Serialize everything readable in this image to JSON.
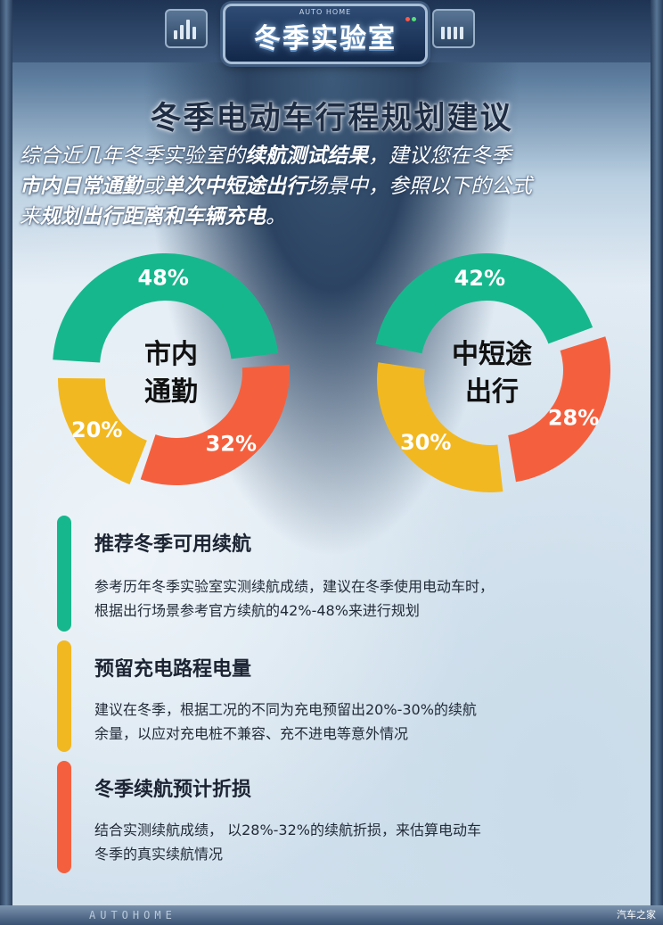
{
  "header": {
    "brand_small": "AUTO HOME",
    "badge_title": "冬季实验室"
  },
  "title": "冬季电动车行程规划建议",
  "intro": {
    "l1_a": "综合近几年冬季实验室的",
    "l1_b": "续航测试结果",
    "l1_c": "，建议您在冬季",
    "l2_a": "市内日常通勤",
    "l2_b": "或",
    "l2_c": "单次中短途出行",
    "l2_d": "场景中，参照以下的公式",
    "l3_a": "来",
    "l3_b": "规划出行距离和车辆充电",
    "l3_c": "。"
  },
  "chart_data": [
    {
      "type": "pie",
      "center_label": [
        "市内",
        "通勤"
      ],
      "slices": [
        {
          "label": "48%",
          "value": 48,
          "color": "#17b78d"
        },
        {
          "label": "32%",
          "value": 32,
          "color": "#f4603e"
        },
        {
          "label": "20%",
          "value": 20,
          "color": "#f2b821"
        }
      ]
    },
    {
      "type": "pie",
      "center_label": [
        "中短途",
        "出行"
      ],
      "slices": [
        {
          "label": "42%",
          "value": 42,
          "color": "#17b78d"
        },
        {
          "label": "28%",
          "value": 28,
          "color": "#f4603e"
        },
        {
          "label": "30%",
          "value": 30,
          "color": "#f2b821"
        }
      ]
    }
  ],
  "items": [
    {
      "title": "推荐冬季可用续航",
      "desc1": "参考历年冬季实验室实测续航成绩，建议在冬季使用电动车时，",
      "desc2": "根据出行场景参考官方续航的42%-48%来进行规划",
      "color": "#17b78d"
    },
    {
      "title": "预留充电路程电量",
      "desc1": "建议在冬季，根据工况的不同为充电预留出20%-30%的续航",
      "desc2": "余量，以应对充电桩不兼容、充不进电等意外情况",
      "color": "#f2b821"
    },
    {
      "title": "冬季续航预计折损",
      "desc1": "结合实测续航成绩， 以28%-32%的续航折损，来估算电动车",
      "desc2": "冬季的真实续航情况",
      "color": "#f4603e"
    }
  ],
  "footer": {
    "brand": "AUTOHOME",
    "watermark": "汽车之家"
  }
}
